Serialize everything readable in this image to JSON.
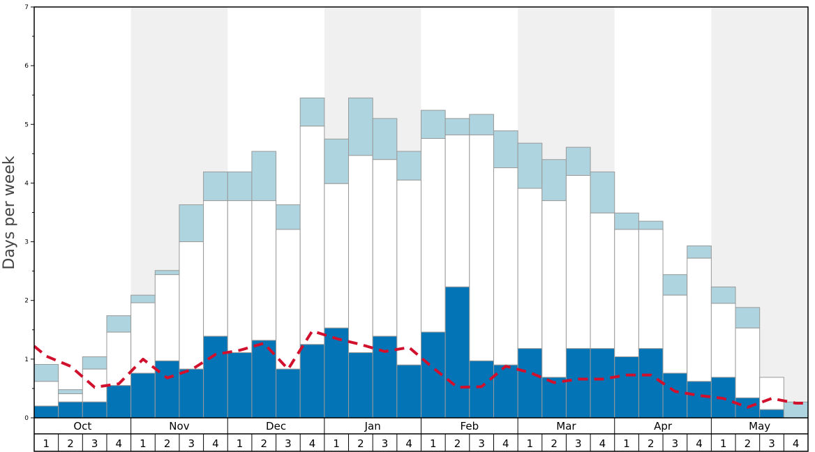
{
  "chart_data": {
    "type": "bar",
    "ylabel": "Days per week",
    "ylim": [
      0,
      7
    ],
    "yticks": [
      "0",
      "1",
      "2",
      "3",
      "4",
      "5",
      "6",
      "7"
    ],
    "months": [
      "Oct",
      "Nov",
      "Dec",
      "Jan",
      "Feb",
      "Mar",
      "Apr",
      "May"
    ],
    "week_labels": [
      "1",
      "2",
      "3",
      "4"
    ],
    "colors": {
      "dark": "#0374b6",
      "white": "#ffffff",
      "light": "#aed4e0",
      "line": "#d0102c",
      "band": "#f0f0f0",
      "bar_edge": "#999999"
    },
    "series": [
      {
        "key": "dark",
        "values": [
          0.2,
          0.27,
          0.27,
          0.55,
          0.76,
          0.97,
          0.83,
          1.39,
          1.11,
          1.32,
          0.83,
          1.25,
          1.53,
          1.11,
          1.39,
          0.9,
          1.46,
          2.23,
          0.97,
          0.9,
          1.18,
          0.69,
          1.18,
          1.18,
          1.04,
          1.18,
          0.76,
          0.62,
          0.69,
          0.34,
          0.14,
          0.0
        ]
      },
      {
        "key": "white_top",
        "values": [
          0.62,
          0.41,
          0.83,
          1.46,
          1.96,
          2.44,
          3.0,
          3.7,
          3.7,
          3.7,
          3.21,
          4.97,
          3.99,
          4.47,
          4.4,
          4.05,
          4.76,
          4.82,
          4.82,
          4.26,
          3.91,
          3.7,
          4.13,
          3.49,
          3.21,
          3.21,
          2.09,
          2.72,
          1.95,
          1.53,
          0.69,
          0.0
        ]
      },
      {
        "key": "light_top",
        "values": [
          0.91,
          0.48,
          1.04,
          1.74,
          2.09,
          2.51,
          3.63,
          4.19,
          4.19,
          4.54,
          3.63,
          5.45,
          4.75,
          5.45,
          5.1,
          4.54,
          5.24,
          5.1,
          5.17,
          4.89,
          4.68,
          4.4,
          4.61,
          4.19,
          3.49,
          3.35,
          2.44,
          2.93,
          2.23,
          1.88,
          0.69,
          0.27
        ]
      },
      {
        "key": "trend",
        "x": [
          0.0,
          0.5,
          1.5,
          2.5,
          3.5,
          4.5,
          5.5,
          6.5,
          7.5,
          8.5,
          9.5,
          10.5,
          11.5,
          12.5,
          13.5,
          14.5,
          15.5,
          16.5,
          17.5,
          18.5,
          19.5,
          20.5,
          21.5,
          22.5,
          23.5,
          24.5,
          25.5,
          26.5,
          27.5,
          28.5,
          29.5,
          30.5,
          31.5,
          32.0
        ],
        "values": [
          1.22,
          1.05,
          0.88,
          0.52,
          0.58,
          1.0,
          0.68,
          0.82,
          1.08,
          1.15,
          1.27,
          0.83,
          1.48,
          1.35,
          1.25,
          1.13,
          1.2,
          0.85,
          0.52,
          0.53,
          0.88,
          0.77,
          0.6,
          0.66,
          0.66,
          0.73,
          0.73,
          0.45,
          0.38,
          0.33,
          0.18,
          0.33,
          0.25,
          0.25
        ]
      }
    ]
  }
}
